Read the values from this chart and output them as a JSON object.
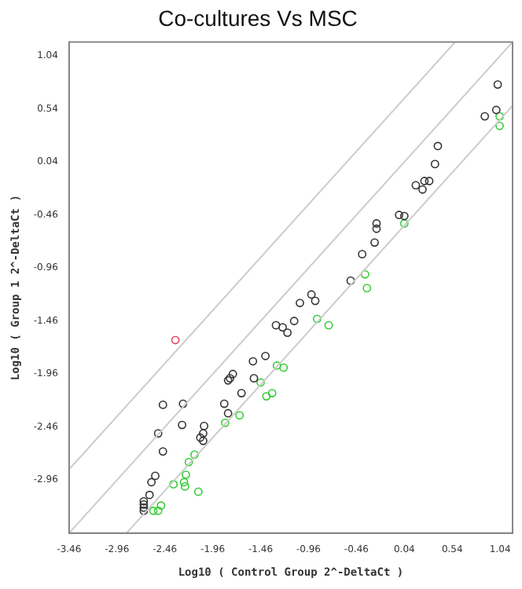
{
  "chart_data": {
    "type": "scatter",
    "title": "Co-cultures Vs MSC",
    "xlabel": "Log10 ( Control Group 2^-DeltaCt )",
    "ylabel": "Log10 ( Group 1 2^-DeltaCt )",
    "xlim": [
      -3.46,
      1.17
    ],
    "ylim": [
      -3.46,
      1.17
    ],
    "xticks": [
      -3.46,
      -2.96,
      -2.46,
      -1.96,
      -1.46,
      -0.96,
      -0.46,
      0.04,
      0.54,
      1.04
    ],
    "yticks": [
      -2.96,
      -2.46,
      -1.96,
      -1.46,
      -0.96,
      -0.46,
      0.04,
      0.54,
      1.04
    ],
    "grid": false,
    "legend": false,
    "marker": "circle",
    "series": [
      {
        "type": "line",
        "marker": "none",
        "color": "#cccccc",
        "x": [
          -3.46,
          1.17
        ],
        "values": [
          -3.46,
          1.17
        ]
      },
      {
        "type": "line",
        "marker": "none",
        "color": "#cccccc",
        "x": [
          -3.46,
          0.57
        ],
        "values": [
          -2.86,
          1.17
        ]
      },
      {
        "type": "line",
        "marker": "none",
        "color": "#cccccc",
        "x": [
          -2.86,
          1.17
        ],
        "values": [
          -3.46,
          0.57
        ]
      },
      {
        "color": "#333333",
        "x": [
          1.015,
          1.0,
          0.88,
          0.39,
          0.36,
          0.16,
          0.25,
          0.3,
          0.23,
          -0.015,
          0.04,
          -0.25,
          -0.25,
          -0.27,
          -0.4,
          -0.52,
          -0.93,
          -0.89,
          -1.05,
          -1.11,
          -1.3,
          -1.23,
          -1.18,
          -1.41,
          -1.54,
          -1.53,
          -1.75,
          -1.78,
          -1.8,
          -1.66,
          -1.84,
          -1.8,
          -2.05,
          -2.06,
          -2.09,
          -2.06,
          -2.27,
          -2.48,
          -2.28,
          -2.53,
          -2.48,
          -2.56,
          -2.6,
          -2.62,
          -2.68,
          -2.68,
          -2.68,
          -2.68
        ],
        "values": [
          0.77,
          0.53,
          0.47,
          0.19,
          0.02,
          -0.18,
          -0.14,
          -0.14,
          -0.22,
          -0.46,
          -0.47,
          -0.54,
          -0.59,
          -0.72,
          -0.83,
          -1.08,
          -1.21,
          -1.27,
          -1.29,
          -1.46,
          -1.5,
          -1.52,
          -1.57,
          -1.79,
          -1.84,
          -2.0,
          -1.96,
          -2.0,
          -2.02,
          -2.14,
          -2.24,
          -2.33,
          -2.45,
          -2.52,
          -2.56,
          -2.59,
          -2.24,
          -2.25,
          -2.44,
          -2.52,
          -2.69,
          -2.92,
          -2.98,
          -3.1,
          -3.16,
          -3.19,
          -3.22,
          -3.25
        ]
      },
      {
        "color": "#33cc33",
        "x": [
          1.035,
          1.035,
          0.04,
          -0.37,
          -0.35,
          -0.87,
          -0.75,
          -1.29,
          -1.22,
          -1.46,
          -1.34,
          -1.4,
          -1.68,
          -1.83,
          -2.15,
          -2.21,
          -2.24,
          -2.26,
          -2.25,
          -2.37,
          -2.11,
          -2.5,
          -2.53,
          -2.58
        ],
        "values": [
          0.47,
          0.38,
          -0.54,
          -1.02,
          -1.15,
          -1.44,
          -1.5,
          -1.88,
          -1.9,
          -2.04,
          -2.14,
          -2.17,
          -2.35,
          -2.42,
          -2.72,
          -2.79,
          -2.91,
          -2.98,
          -3.02,
          -3.0,
          -3.07,
          -3.2,
          -3.25,
          -3.25
        ]
      },
      {
        "color": "#dd4466",
        "x": [
          -2.35
        ],
        "values": [
          -1.64
        ]
      }
    ]
  }
}
